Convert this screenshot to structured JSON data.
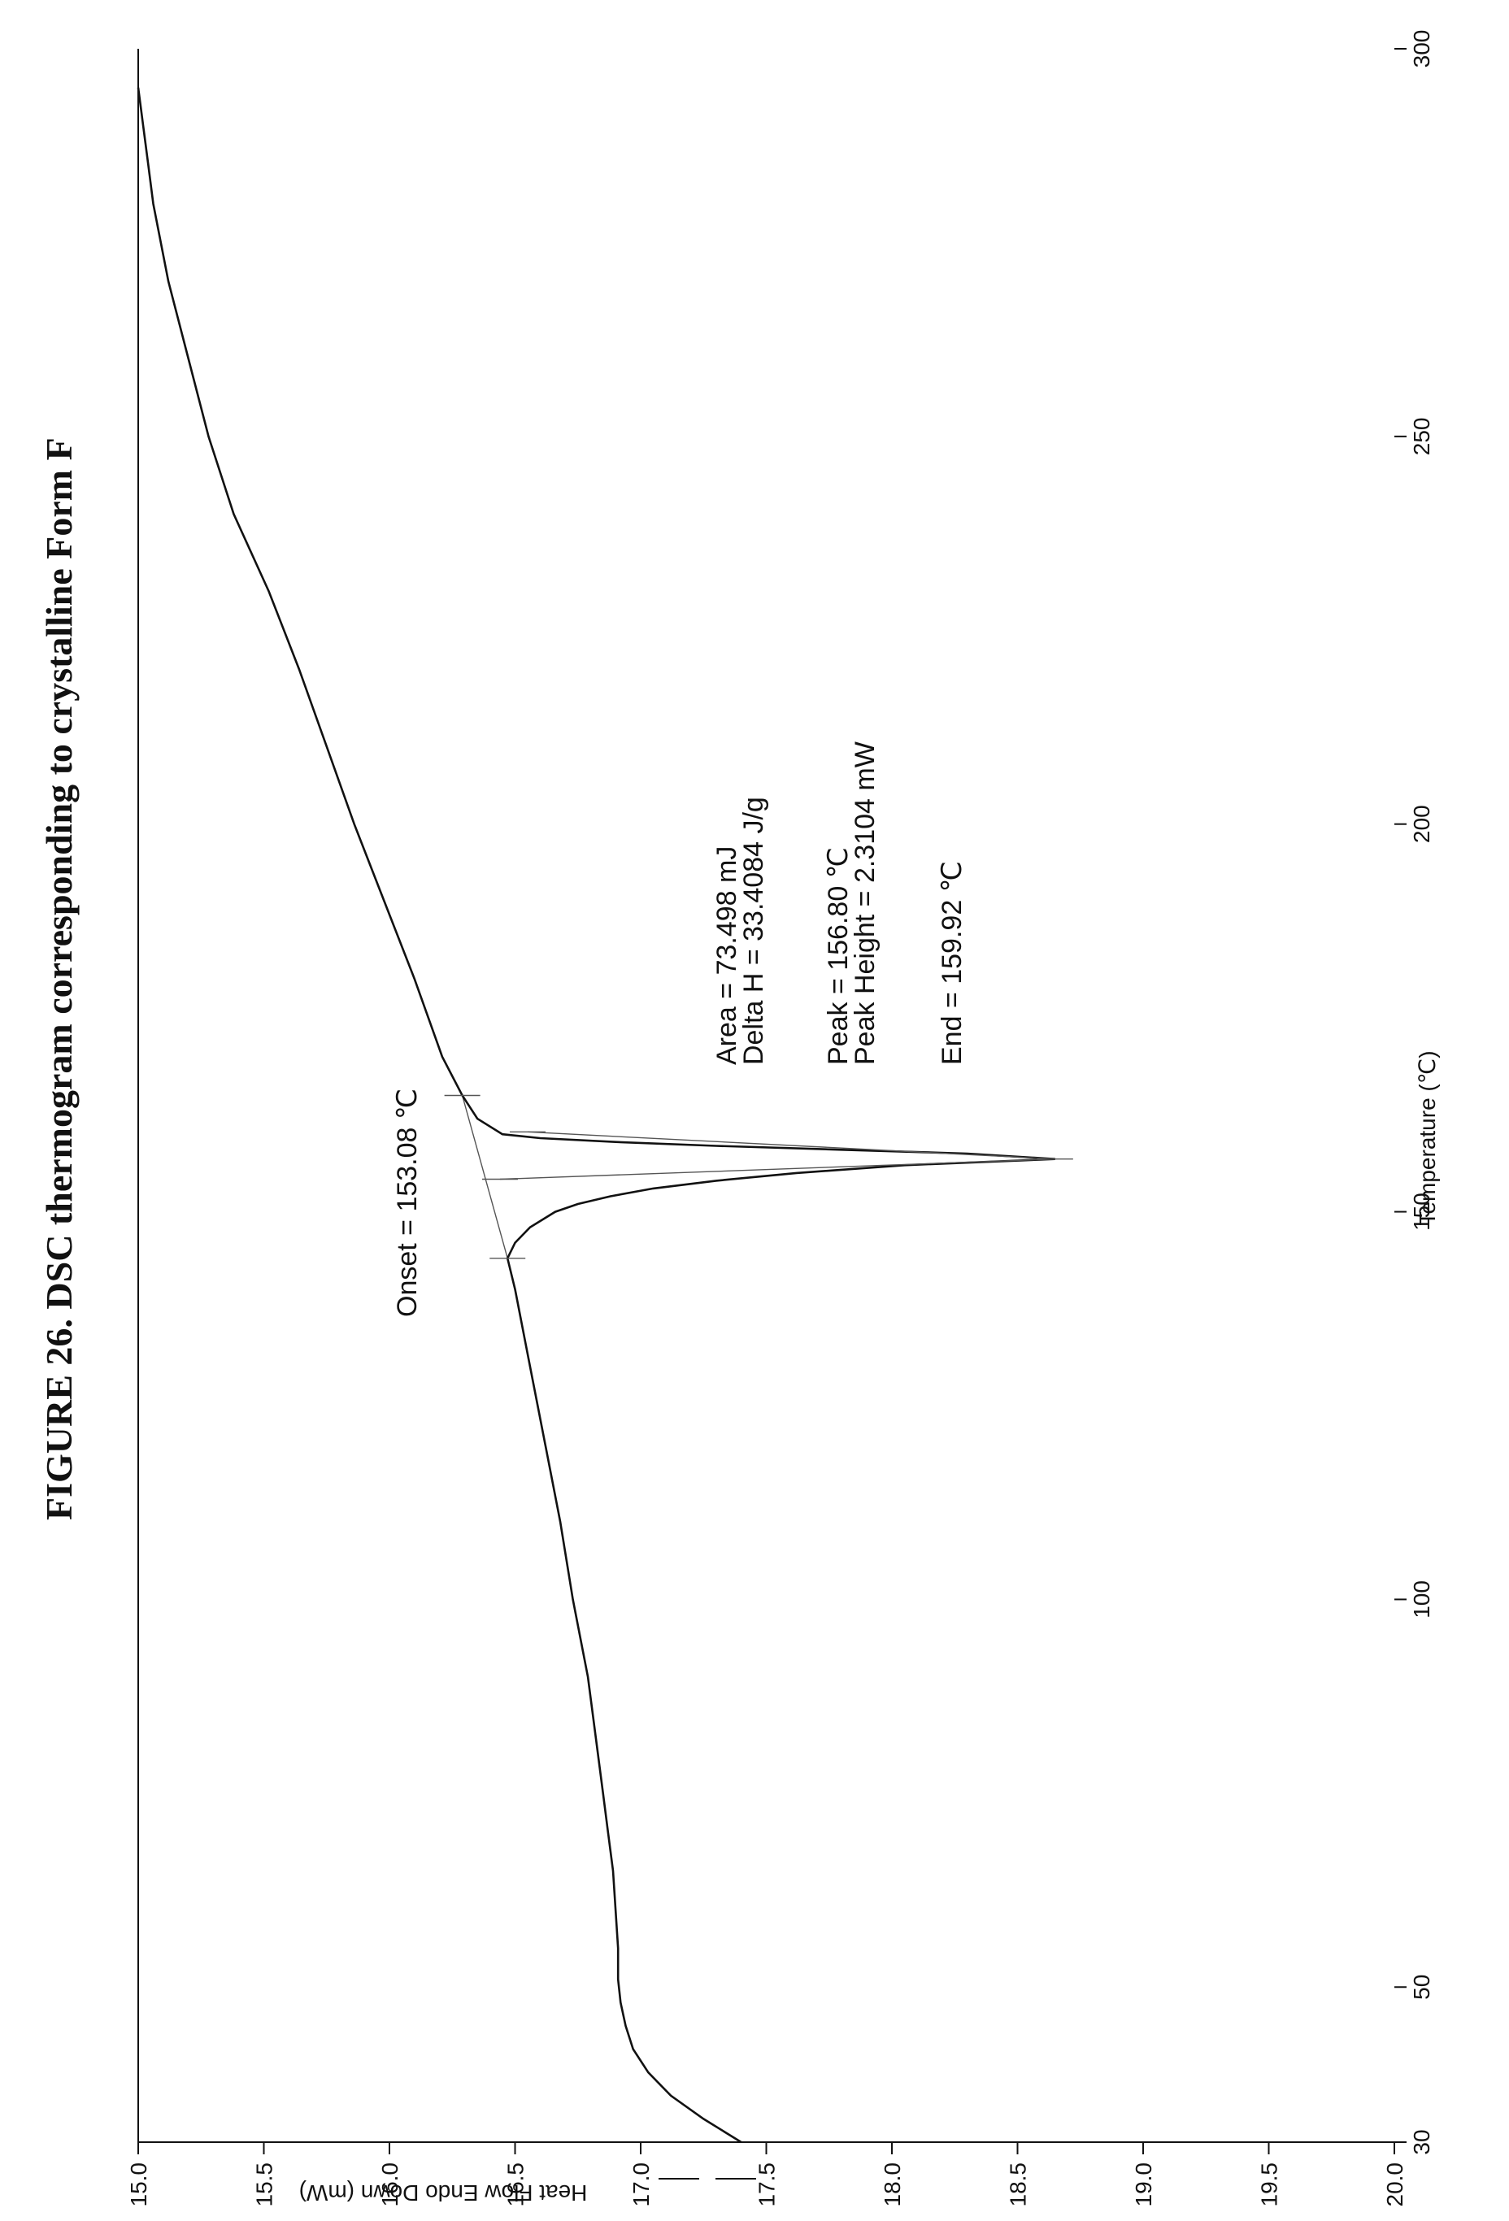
{
  "figure": {
    "title": "FIGURE 26. DSC thermogram corresponding to crystalline Form F"
  },
  "chart_data": {
    "type": "line",
    "xlabel": "Temperature (℃)",
    "ylabel": "Heat Flow Endo Down (mW)",
    "xlim": [
      30,
      300
    ],
    "ylim": [
      15.0,
      20.0
    ],
    "y_inverted": true,
    "x_ticks": [
      30,
      50,
      100,
      150,
      200,
      250,
      300
    ],
    "y_ticks": [
      "15.0",
      "15.5",
      "16.0",
      "16.5",
      "17.0",
      "17.5",
      "18.0",
      "18.5",
      "19.0",
      "19.5",
      "20.0"
    ],
    "grid": false,
    "series": [
      {
        "x": [
          30,
          33,
          36,
          39,
          42,
          45,
          48,
          51,
          55,
          60,
          65,
          70,
          75,
          80,
          90,
          100,
          110,
          120,
          130,
          140,
          144,
          146,
          148,
          150,
          151,
          152,
          153,
          154,
          155,
          156,
          156.8,
          157.5,
          158,
          158.5,
          159,
          159.5,
          160,
          162,
          165,
          170,
          180,
          190,
          200,
          210,
          220,
          230,
          240,
          250,
          260,
          270,
          280,
          285,
          290,
          295
        ],
        "y": [
          17.4,
          17.25,
          17.12,
          17.03,
          16.97,
          16.94,
          16.92,
          16.91,
          16.91,
          16.9,
          16.89,
          16.87,
          16.85,
          16.83,
          16.79,
          16.73,
          16.68,
          16.62,
          16.56,
          16.5,
          16.47,
          16.5,
          16.56,
          16.66,
          16.75,
          16.88,
          17.05,
          17.3,
          17.62,
          18.05,
          18.65,
          18.3,
          17.8,
          17.3,
          16.9,
          16.6,
          16.45,
          16.35,
          16.29,
          16.21,
          16.1,
          15.98,
          15.86,
          15.75,
          15.64,
          15.52,
          15.38,
          15.28,
          15.2,
          15.12,
          15.06,
          15.04,
          15.02,
          15.0
        ]
      }
    ],
    "annotations": [
      {
        "id": "onset",
        "text": "Onset = 153.08 ℃"
      },
      {
        "id": "area",
        "text": "Area = 73.498 mJ"
      },
      {
        "id": "delta-h",
        "text": "Delta H = 33.4084 J/g"
      },
      {
        "id": "peak",
        "text": "Peak = 156.80 ℃"
      },
      {
        "id": "peak-height",
        "text": "Peak Height = 2.3104 mW"
      },
      {
        "id": "end",
        "text": "End = 159.92 ℃"
      }
    ]
  }
}
